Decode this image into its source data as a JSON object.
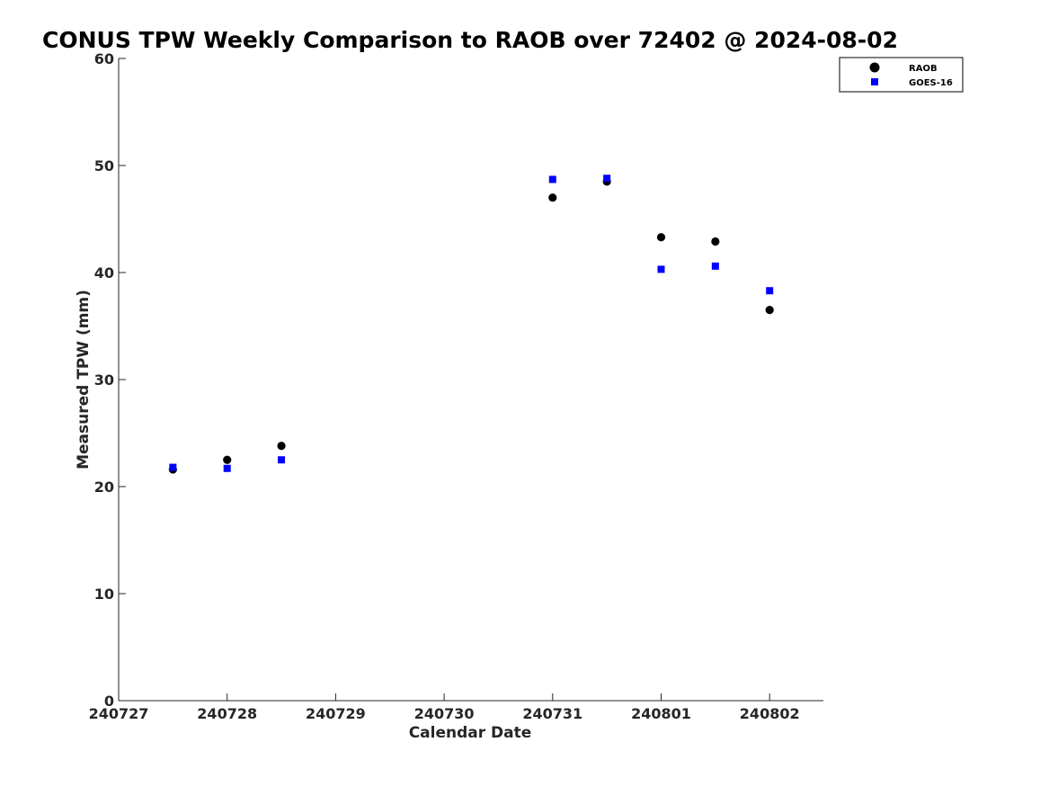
{
  "chart_data": {
    "type": "scatter",
    "title": "CONUS TPW Weekly Comparison to RAOB over 72402 @ 2024-08-02",
    "xlabel": "Calendar Date",
    "ylabel": "Measured TPW (mm)",
    "x_ticks": [
      "240727",
      "240728",
      "240729",
      "240730",
      "240731",
      "240801",
      "240802"
    ],
    "x_unit": "tick index (day), half-day resolution",
    "xlim": [
      0,
      6.5
    ],
    "ylim": [
      0,
      60
    ],
    "y_ticks": [
      0,
      10,
      20,
      30,
      40,
      50,
      60
    ],
    "grid": false,
    "legend_position": "top-right",
    "series": [
      {
        "name": "RAOB",
        "marker": "circle",
        "color": "#000000",
        "points": [
          {
            "x": 0.5,
            "y": 21.6
          },
          {
            "x": 1.0,
            "y": 22.5
          },
          {
            "x": 1.5,
            "y": 23.8
          },
          {
            "x": 4.0,
            "y": 47.0
          },
          {
            "x": 4.5,
            "y": 48.5
          },
          {
            "x": 5.0,
            "y": 43.3
          },
          {
            "x": 5.5,
            "y": 42.9
          },
          {
            "x": 6.0,
            "y": 36.5
          }
        ]
      },
      {
        "name": "GOES-16",
        "marker": "square",
        "color": "#0000ff",
        "points": [
          {
            "x": 0.5,
            "y": 21.8
          },
          {
            "x": 1.0,
            "y": 21.7
          },
          {
            "x": 1.5,
            "y": 22.5
          },
          {
            "x": 4.0,
            "y": 48.7
          },
          {
            "x": 4.5,
            "y": 48.8
          },
          {
            "x": 5.0,
            "y": 40.3
          },
          {
            "x": 5.5,
            "y": 40.6
          },
          {
            "x": 6.0,
            "y": 38.3
          }
        ]
      }
    ]
  }
}
